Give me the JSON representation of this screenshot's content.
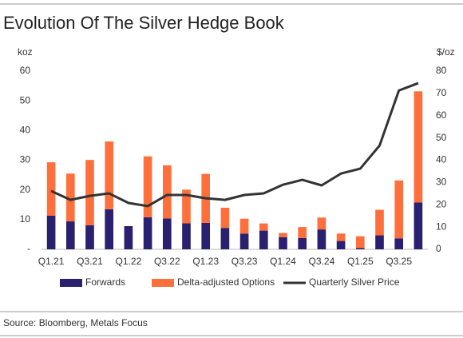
{
  "chart_data": {
    "type": "bar",
    "stacked": true,
    "title": "Evolution Of The Silver Hedge Book",
    "y_label": "koz",
    "y2_label": "$/oz",
    "source": "Source: Bloomberg, Metals Focus",
    "categories": [
      "Q1.21",
      null,
      "Q3.21",
      null,
      "Q1.22",
      null,
      "Q3.22",
      null,
      "Q1.23",
      null,
      "Q3.23",
      null,
      "Q1.24",
      null,
      "Q3.24",
      null,
      "Q1.25",
      null,
      "Q3.25",
      null
    ],
    "series": [
      {
        "name": "Forwards",
        "color": "#2b1f6f",
        "values": [
          11.3,
          9.4,
          8.1,
          13.5,
          7.8,
          10.8,
          10.4,
          8.8,
          8.9,
          7.2,
          5.3,
          6.3,
          4.1,
          3.8,
          6.7,
          2.8,
          0.4,
          4.7,
          3.7,
          15.8
        ]
      },
      {
        "name": "Delta-adjusted Options",
        "color": "#ff6f3c",
        "values": [
          18.0,
          16.1,
          22.0,
          22.8,
          0,
          20.5,
          17.9,
          11.3,
          16.5,
          6.8,
          5.0,
          2.4,
          1.4,
          3.7,
          4.0,
          2.5,
          4.0,
          8.6,
          19.5,
          37.4
        ]
      },
      {
        "name": "Quarterly Silver Price",
        "color": "#333333",
        "type": "line",
        "axis": "y2",
        "values": [
          26.2,
          22.2,
          24.0,
          25.1,
          20.8,
          19.4,
          24.4,
          24.4,
          22.9,
          22.2,
          24.4,
          25.1,
          29.0,
          31.2,
          28.7,
          34.0,
          36.2,
          46.6,
          71.3,
          74.6
        ]
      }
    ],
    "ylim": [
      0,
      60
    ],
    "yticks": [
      {
        "value": 0,
        "label": "-"
      },
      10,
      20,
      30,
      40,
      50,
      60
    ],
    "y2lim": [
      0,
      80
    ],
    "y2ticks": [
      0,
      10,
      20,
      30,
      40,
      50,
      60,
      70,
      80
    ]
  }
}
